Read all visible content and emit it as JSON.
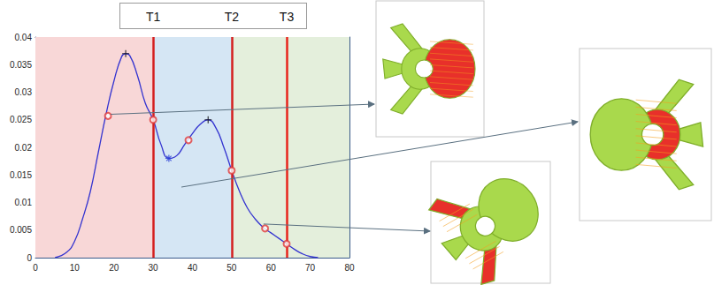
{
  "chart_data": {
    "type": "line",
    "x": [
      5,
      8,
      10,
      12,
      14,
      16,
      18,
      20,
      22,
      23,
      24,
      26,
      28,
      30,
      32,
      34,
      36,
      38,
      40,
      42,
      44,
      46,
      48,
      50,
      52,
      54,
      56,
      58,
      60,
      62,
      64,
      66,
      68,
      70,
      72
    ],
    "values": [
      0,
      0.001,
      0.003,
      0.007,
      0.012,
      0.019,
      0.026,
      0.032,
      0.0365,
      0.037,
      0.0367,
      0.033,
      0.028,
      0.025,
      0.0205,
      0.018,
      0.0185,
      0.0205,
      0.0225,
      0.0242,
      0.025,
      0.0235,
      0.02,
      0.0158,
      0.012,
      0.009,
      0.007,
      0.0055,
      0.0045,
      0.0035,
      0.0025,
      0.0015,
      0.0007,
      0.0002,
      0
    ],
    "color": "#3434d0",
    "xlim": [
      0,
      80
    ],
    "xticks": [
      0,
      10,
      20,
      30,
      40,
      50,
      60,
      70,
      80
    ],
    "ylim": [
      0,
      0.04
    ],
    "yticks": [
      0,
      0.005,
      0.01,
      0.015,
      0.02,
      0.025,
      0.03,
      0.035,
      0.04
    ],
    "grid": false,
    "markers": [
      {
        "marker": "circle",
        "color": "#e03a3a",
        "x": [
          18.5,
          30,
          39,
          50,
          58.5,
          64
        ],
        "y": [
          0.0257,
          0.025,
          0.0213,
          0.0158,
          0.0053,
          0.0025
        ]
      },
      {
        "marker": "plus",
        "color": "#111111",
        "x": [
          23,
          44
        ],
        "y": [
          0.037,
          0.025
        ]
      },
      {
        "marker": "star",
        "color": "#2b3fd6",
        "x": [
          34
        ],
        "y": [
          0.018
        ]
      }
    ],
    "regions": [
      {
        "from": 0,
        "to": 30,
        "color": "#f8d7d7"
      },
      {
        "from": 30,
        "to": 50,
        "color": "#d5e6f4"
      },
      {
        "from": 50,
        "to": 80,
        "color": "#e4efdc"
      }
    ],
    "thresholds": [
      {
        "label": "T1",
        "x": 30,
        "color": "#d42020"
      },
      {
        "label": "T2",
        "x": 50,
        "color": "#d42020"
      },
      {
        "label": "T3",
        "x": 64,
        "color": "#e8241c"
      }
    ],
    "callouts": [
      {
        "x": 19.2,
        "y": 0.026
      },
      {
        "x": 37.2,
        "y": 0.0128
      },
      {
        "x": 58.1,
        "y": 0.0061
      }
    ]
  }
}
